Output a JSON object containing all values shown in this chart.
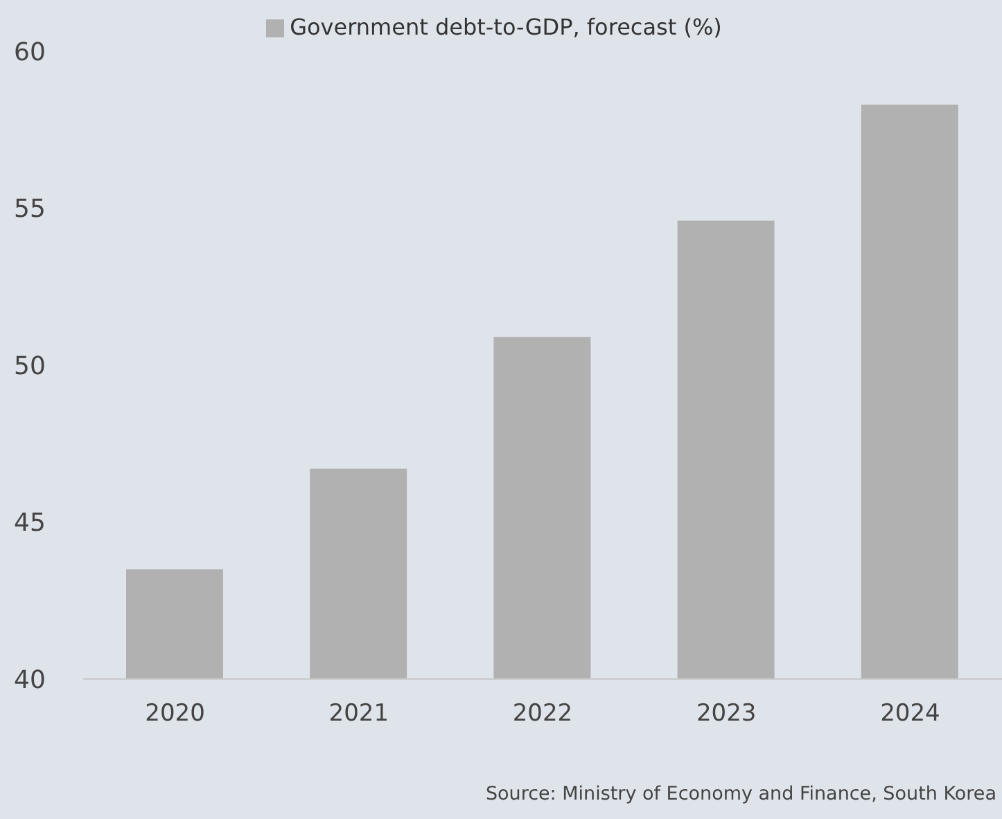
{
  "chart_data": {
    "type": "bar",
    "categories": [
      "2020",
      "2021",
      "2022",
      "2023",
      "2024"
    ],
    "series": [
      {
        "name": "Government debt-to-GDP, forecast (%)",
        "color": "#b1b1b1",
        "values": [
          43.5,
          46.7,
          50.9,
          54.6,
          58.3
        ]
      }
    ],
    "ylim": [
      40,
      60
    ],
    "yticks": [
      40,
      45,
      50,
      55,
      60
    ],
    "grid": false,
    "legend": "top",
    "annotations": [
      "Source: Ministry of Economy and Finance, South Korea"
    ]
  }
}
